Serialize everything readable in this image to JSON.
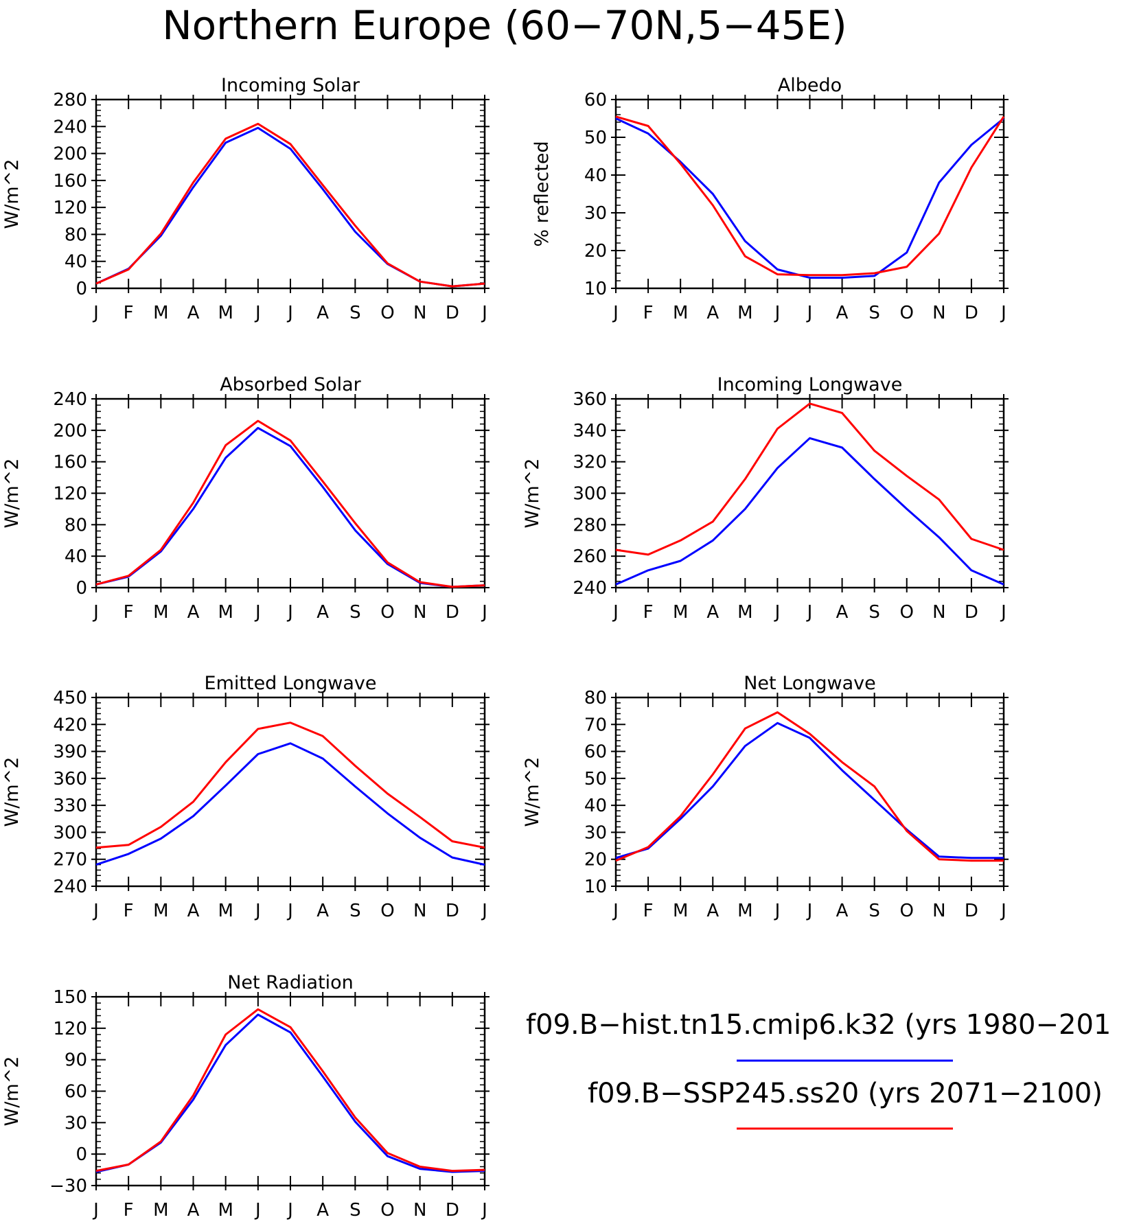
{
  "title": "Northern Europe (60−70N,5−45E)",
  "months": [
    "J",
    "F",
    "M",
    "A",
    "M",
    "J",
    "J",
    "A",
    "S",
    "O",
    "N",
    "D",
    "J"
  ],
  "colors": {
    "hist": "#0000ff",
    "ssp": "#ff0000",
    "axis": "#000000"
  },
  "legend": [
    {
      "label": "f09.B−hist.tn15.cmip6.k32 (yrs 1980−201",
      "color": "#0000ff"
    },
    {
      "label": "f09.B−SSP245.ss20 (yrs 2071−2100)",
      "color": "#ff0000"
    }
  ],
  "chart_data": [
    {
      "type": "line",
      "title": "Incoming Solar",
      "ylabel": "W/m^2",
      "ylim": [
        0,
        280
      ],
      "yticks": [
        0,
        40,
        80,
        120,
        160,
        200,
        240,
        280
      ],
      "series": [
        {
          "values": [
            7,
            29,
            78,
            150,
            216,
            238,
            207,
            147,
            84,
            36,
            10,
            3,
            7
          ]
        },
        {
          "values": [
            7,
            28,
            81,
            157,
            222,
            244,
            214,
            153,
            93,
            37,
            10,
            3,
            7
          ]
        }
      ]
    },
    {
      "type": "line",
      "title": "Albedo",
      "ylabel": "% reflected",
      "ylim": [
        10,
        60
      ],
      "yticks": [
        10,
        20,
        30,
        40,
        50,
        60
      ],
      "series": [
        {
          "values": [
            55,
            51,
            43.5,
            35,
            22.5,
            15,
            12.8,
            12.8,
            13.3,
            19.5,
            38,
            48,
            55
          ]
        },
        {
          "values": [
            55.5,
            53,
            43,
            32,
            18.5,
            13.7,
            13.5,
            13.5,
            14,
            15.7,
            24.5,
            42,
            55.5
          ]
        }
      ]
    },
    {
      "type": "line",
      "title": "Absorbed Solar",
      "ylabel": "W/m^2",
      "ylim": [
        0,
        240
      ],
      "yticks": [
        0,
        40,
        80,
        120,
        160,
        200,
        240
      ],
      "series": [
        {
          "values": [
            4,
            14,
            46,
            100,
            165,
            203,
            180,
            128,
            73,
            30,
            6,
            1,
            3
          ]
        },
        {
          "values": [
            4,
            15,
            48,
            108,
            181,
            212,
            187,
            135,
            82,
            32,
            7,
            1,
            3
          ]
        }
      ]
    },
    {
      "type": "line",
      "title": "Incoming Longwave",
      "ylabel": "W/m^2",
      "ylim": [
        240,
        360
      ],
      "yticks": [
        240,
        260,
        280,
        300,
        320,
        340,
        360
      ],
      "series": [
        {
          "values": [
            242,
            251,
            257,
            270,
            290,
            316,
            335,
            329,
            309,
            290,
            272,
            251,
            242
          ]
        },
        {
          "values": [
            264,
            261,
            270,
            282,
            309,
            341,
            357,
            351,
            327,
            311,
            296,
            271,
            264
          ]
        }
      ]
    },
    {
      "type": "line",
      "title": "Emitted Longwave",
      "ylabel": "W/m^2",
      "ylim": [
        240,
        450
      ],
      "yticks": [
        240,
        270,
        300,
        330,
        360,
        390,
        420,
        450
      ],
      "series": [
        {
          "values": [
            264,
            276,
            293,
            318,
            352,
            387,
            399,
            382,
            351,
            321,
            294,
            272,
            264
          ]
        },
        {
          "values": [
            283,
            286,
            306,
            334,
            378,
            415,
            422,
            407,
            374,
            343,
            317,
            290,
            283
          ]
        }
      ]
    },
    {
      "type": "line",
      "title": "Net Longwave",
      "ylabel": "W/m^2",
      "ylim": [
        10,
        80
      ],
      "yticks": [
        10,
        20,
        30,
        40,
        50,
        60,
        70,
        80
      ],
      "series": [
        {
          "values": [
            20.5,
            24,
            35,
            47,
            62,
            70.5,
            65,
            53,
            42,
            31,
            21,
            20.5,
            20.5
          ]
        },
        {
          "values": [
            19.5,
            24.5,
            36,
            51.5,
            68.5,
            74.5,
            66.5,
            56,
            47,
            30.5,
            20,
            19.5,
            19.5
          ]
        }
      ]
    },
    {
      "type": "line",
      "title": "Net Radiation",
      "ylabel": "W/m^2",
      "ylim": [
        -30,
        150
      ],
      "yticks": [
        -30,
        0,
        30,
        60,
        90,
        120,
        150
      ],
      "series": [
        {
          "values": [
            -17,
            -10,
            11,
            52,
            104,
            133,
            116,
            74,
            31,
            -2,
            -14,
            -17,
            -16
          ]
        },
        {
          "values": [
            -16,
            -10,
            12,
            56,
            114,
            138,
            121,
            79,
            35,
            1,
            -12,
            -16,
            -15
          ]
        }
      ]
    }
  ]
}
